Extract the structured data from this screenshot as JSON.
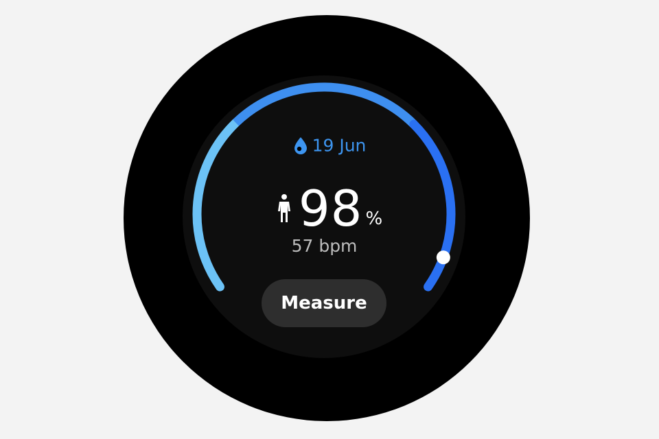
{
  "header": {
    "date": "19 Jun",
    "icon": "blood-drop-icon",
    "accent": "#3d95f0"
  },
  "reading": {
    "value": "98",
    "unit": "%",
    "icon": "person-standing-icon",
    "heart_rate": "57 bpm"
  },
  "gauge": {
    "colors": [
      "#6cc2f6",
      "#3e8ff0",
      "#2a70f2"
    ],
    "indicator_color": "#ffffff"
  },
  "actions": {
    "measure_label": "Measure"
  }
}
